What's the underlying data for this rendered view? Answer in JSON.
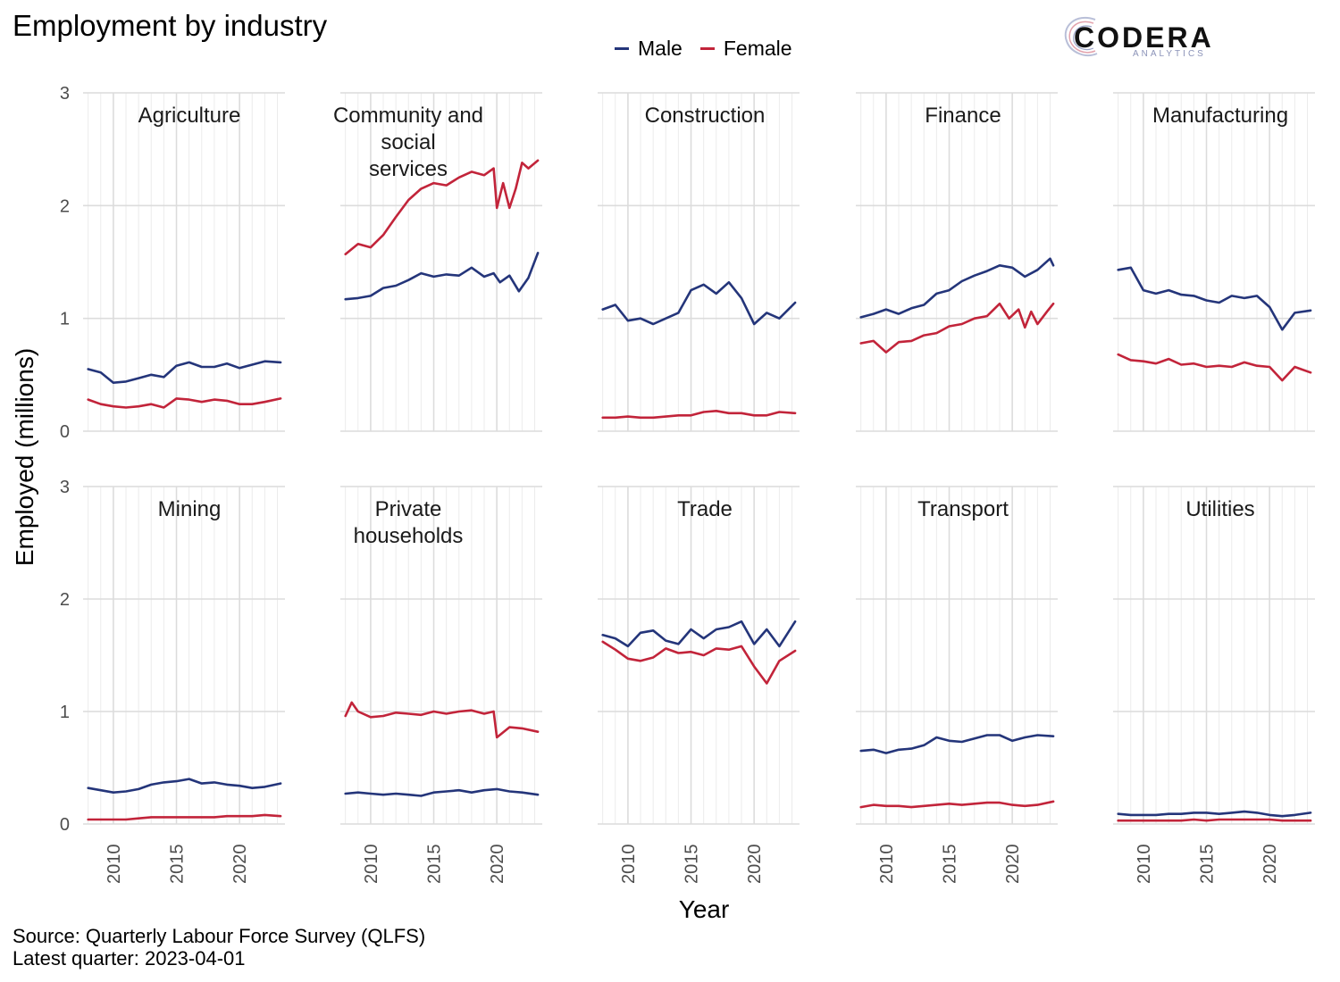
{
  "title": "Employment by industry",
  "logo": {
    "name": "CODERA",
    "subtitle": "ANALYTICS"
  },
  "source_line": "Source: Quarterly Labour Force Survey (QLFS)",
  "latest_line": "Latest quarter: 2023-04-01",
  "chart_data": {
    "type": "line",
    "title": "Employment by industry",
    "xlabel": "Year",
    "ylabel": "Employed (millions)",
    "xlim": [
      2008,
      2023.25
    ],
    "ylim": [
      0,
      3
    ],
    "x_ticks": [
      2010,
      2015,
      2020
    ],
    "y_ticks": [
      0,
      1,
      2,
      3
    ],
    "grid": true,
    "legend": "top-center",
    "colors": {
      "Male": "#24357a",
      "Female": "#c2243a"
    },
    "facets": [
      {
        "label": "Agriculture",
        "series": [
          {
            "name": "Male",
            "x": [
              2008,
              2009,
              2010,
              2011,
              2012,
              2013,
              2014,
              2015,
              2016,
              2017,
              2018,
              2019,
              2020,
              2021,
              2022,
              2023.25
            ],
            "values": [
              0.55,
              0.52,
              0.43,
              0.44,
              0.47,
              0.5,
              0.48,
              0.58,
              0.61,
              0.57,
              0.57,
              0.6,
              0.56,
              0.59,
              0.62,
              0.61
            ]
          },
          {
            "name": "Female",
            "x": [
              2008,
              2009,
              2010,
              2011,
              2012,
              2013,
              2014,
              2015,
              2016,
              2017,
              2018,
              2019,
              2020,
              2021,
              2022,
              2023.25
            ],
            "values": [
              0.28,
              0.24,
              0.22,
              0.21,
              0.22,
              0.24,
              0.21,
              0.29,
              0.28,
              0.26,
              0.28,
              0.27,
              0.24,
              0.24,
              0.26,
              0.29
            ]
          }
        ]
      },
      {
        "label": "Community and social services",
        "series": [
          {
            "name": "Male",
            "x": [
              2008,
              2009,
              2010,
              2011,
              2012,
              2013,
              2014,
              2015,
              2016,
              2017,
              2018,
              2019,
              2019.75,
              2020.25,
              2021,
              2021.75,
              2022.5,
              2023.25
            ],
            "values": [
              1.17,
              1.18,
              1.2,
              1.27,
              1.29,
              1.34,
              1.4,
              1.37,
              1.39,
              1.38,
              1.45,
              1.37,
              1.4,
              1.32,
              1.38,
              1.24,
              1.36,
              1.58
            ]
          },
          {
            "name": "Female",
            "x": [
              2008,
              2009,
              2010,
              2011,
              2012,
              2013,
              2014,
              2015,
              2016,
              2017,
              2018,
              2019,
              2019.75,
              2020,
              2020.5,
              2021,
              2021.5,
              2022,
              2022.5,
              2023.25
            ],
            "values": [
              1.57,
              1.66,
              1.63,
              1.74,
              1.9,
              2.05,
              2.15,
              2.2,
              2.18,
              2.25,
              2.3,
              2.27,
              2.33,
              1.98,
              2.2,
              1.98,
              2.15,
              2.38,
              2.33,
              2.4
            ]
          }
        ]
      },
      {
        "label": "Construction",
        "series": [
          {
            "name": "Male",
            "x": [
              2008,
              2009,
              2010,
              2011,
              2012,
              2013,
              2014,
              2015,
              2016,
              2017,
              2018,
              2019,
              2020,
              2021,
              2022,
              2023.25
            ],
            "values": [
              1.08,
              1.12,
              0.98,
              1.0,
              0.95,
              1.0,
              1.05,
              1.25,
              1.3,
              1.22,
              1.32,
              1.18,
              0.95,
              1.05,
              1.0,
              1.14
            ]
          },
          {
            "name": "Female",
            "x": [
              2008,
              2009,
              2010,
              2011,
              2012,
              2013,
              2014,
              2015,
              2016,
              2017,
              2018,
              2019,
              2020,
              2021,
              2022,
              2023.25
            ],
            "values": [
              0.12,
              0.12,
              0.13,
              0.12,
              0.12,
              0.13,
              0.14,
              0.14,
              0.17,
              0.18,
              0.16,
              0.16,
              0.14,
              0.14,
              0.17,
              0.16
            ]
          }
        ]
      },
      {
        "label": "Finance",
        "series": [
          {
            "name": "Male",
            "x": [
              2008,
              2009,
              2010,
              2011,
              2012,
              2013,
              2014,
              2015,
              2016,
              2017,
              2018,
              2019,
              2020,
              2021,
              2022,
              2023,
              2023.25
            ],
            "values": [
              1.01,
              1.04,
              1.08,
              1.04,
              1.09,
              1.12,
              1.22,
              1.25,
              1.33,
              1.38,
              1.42,
              1.47,
              1.45,
              1.37,
              1.43,
              1.53,
              1.47
            ]
          },
          {
            "name": "Female",
            "x": [
              2008,
              2009,
              2010,
              2011,
              2012,
              2013,
              2014,
              2015,
              2016,
              2017,
              2018,
              2019,
              2019.75,
              2020.5,
              2021,
              2021.5,
              2022,
              2022.75,
              2023.25
            ],
            "values": [
              0.78,
              0.8,
              0.7,
              0.79,
              0.8,
              0.85,
              0.87,
              0.93,
              0.95,
              1.0,
              1.02,
              1.13,
              1.0,
              1.08,
              0.92,
              1.06,
              0.95,
              1.06,
              1.13
            ]
          }
        ]
      },
      {
        "label": "Manufacturing",
        "series": [
          {
            "name": "Male",
            "x": [
              2008,
              2009,
              2010,
              2011,
              2012,
              2013,
              2014,
              2015,
              2016,
              2017,
              2018,
              2019,
              2020,
              2021,
              2022,
              2023.25
            ],
            "values": [
              1.43,
              1.45,
              1.25,
              1.22,
              1.25,
              1.21,
              1.2,
              1.16,
              1.14,
              1.2,
              1.18,
              1.2,
              1.1,
              0.9,
              1.05,
              1.07
            ]
          },
          {
            "name": "Female",
            "x": [
              2008,
              2009,
              2010,
              2011,
              2012,
              2013,
              2014,
              2015,
              2016,
              2017,
              2018,
              2019,
              2020,
              2021,
              2022,
              2023.25
            ],
            "values": [
              0.68,
              0.63,
              0.62,
              0.6,
              0.64,
              0.59,
              0.6,
              0.57,
              0.58,
              0.57,
              0.61,
              0.58,
              0.57,
              0.45,
              0.57,
              0.52
            ]
          }
        ]
      },
      {
        "label": "Mining",
        "series": [
          {
            "name": "Male",
            "x": [
              2008,
              2009,
              2010,
              2011,
              2012,
              2013,
              2014,
              2015,
              2016,
              2017,
              2018,
              2019,
              2020,
              2021,
              2022,
              2023.25
            ],
            "values": [
              0.32,
              0.3,
              0.28,
              0.29,
              0.31,
              0.35,
              0.37,
              0.38,
              0.4,
              0.36,
              0.37,
              0.35,
              0.34,
              0.32,
              0.33,
              0.36
            ]
          },
          {
            "name": "Female",
            "x": [
              2008,
              2009,
              2010,
              2011,
              2012,
              2013,
              2014,
              2015,
              2016,
              2017,
              2018,
              2019,
              2020,
              2021,
              2022,
              2023.25
            ],
            "values": [
              0.04,
              0.04,
              0.04,
              0.04,
              0.05,
              0.06,
              0.06,
              0.06,
              0.06,
              0.06,
              0.06,
              0.07,
              0.07,
              0.07,
              0.08,
              0.07
            ]
          }
        ]
      },
      {
        "label": "Private households",
        "series": [
          {
            "name": "Male",
            "x": [
              2008,
              2009,
              2010,
              2011,
              2012,
              2013,
              2014,
              2015,
              2016,
              2017,
              2018,
              2019,
              2020,
              2021,
              2022,
              2023.25
            ],
            "values": [
              0.27,
              0.28,
              0.27,
              0.26,
              0.27,
              0.26,
              0.25,
              0.28,
              0.29,
              0.3,
              0.28,
              0.3,
              0.31,
              0.29,
              0.28,
              0.26
            ]
          },
          {
            "name": "Female",
            "x": [
              2008,
              2008.5,
              2009,
              2010,
              2011,
              2012,
              2013,
              2014,
              2015,
              2016,
              2017,
              2018,
              2019,
              2019.75,
              2020,
              2021,
              2022,
              2023.25
            ],
            "values": [
              0.96,
              1.08,
              1.0,
              0.95,
              0.96,
              0.99,
              0.98,
              0.97,
              1.0,
              0.98,
              1.0,
              1.01,
              0.98,
              1.0,
              0.77,
              0.86,
              0.85,
              0.82
            ]
          }
        ]
      },
      {
        "label": "Trade",
        "series": [
          {
            "name": "Male",
            "x": [
              2008,
              2009,
              2010,
              2011,
              2012,
              2013,
              2014,
              2015,
              2016,
              2017,
              2018,
              2019,
              2020,
              2021,
              2022,
              2023.25
            ],
            "values": [
              1.68,
              1.65,
              1.58,
              1.7,
              1.72,
              1.63,
              1.6,
              1.73,
              1.65,
              1.73,
              1.75,
              1.8,
              1.6,
              1.73,
              1.58,
              1.8
            ]
          },
          {
            "name": "Female",
            "x": [
              2008,
              2009,
              2010,
              2011,
              2012,
              2013,
              2014,
              2015,
              2016,
              2017,
              2018,
              2019,
              2020,
              2021,
              2022,
              2023.25
            ],
            "values": [
              1.62,
              1.55,
              1.47,
              1.45,
              1.48,
              1.56,
              1.52,
              1.53,
              1.5,
              1.56,
              1.55,
              1.58,
              1.4,
              1.25,
              1.45,
              1.54
            ]
          }
        ]
      },
      {
        "label": "Transport",
        "series": [
          {
            "name": "Male",
            "x": [
              2008,
              2009,
              2010,
              2011,
              2012,
              2013,
              2014,
              2015,
              2016,
              2017,
              2018,
              2019,
              2020,
              2021,
              2022,
              2023.25
            ],
            "values": [
              0.65,
              0.66,
              0.63,
              0.66,
              0.67,
              0.7,
              0.77,
              0.74,
              0.73,
              0.76,
              0.79,
              0.79,
              0.74,
              0.77,
              0.79,
              0.78
            ]
          },
          {
            "name": "Female",
            "x": [
              2008,
              2009,
              2010,
              2011,
              2012,
              2013,
              2014,
              2015,
              2016,
              2017,
              2018,
              2019,
              2020,
              2021,
              2022,
              2023.25
            ],
            "values": [
              0.15,
              0.17,
              0.16,
              0.16,
              0.15,
              0.16,
              0.17,
              0.18,
              0.17,
              0.18,
              0.19,
              0.19,
              0.17,
              0.16,
              0.17,
              0.2
            ]
          }
        ]
      },
      {
        "label": "Utilities",
        "series": [
          {
            "name": "Male",
            "x": [
              2008,
              2009,
              2010,
              2011,
              2012,
              2013,
              2014,
              2015,
              2016,
              2017,
              2018,
              2019,
              2020,
              2021,
              2022,
              2023.25
            ],
            "values": [
              0.09,
              0.08,
              0.08,
              0.08,
              0.09,
              0.09,
              0.1,
              0.1,
              0.09,
              0.1,
              0.11,
              0.1,
              0.08,
              0.07,
              0.08,
              0.1
            ]
          },
          {
            "name": "Female",
            "x": [
              2008,
              2009,
              2010,
              2011,
              2012,
              2013,
              2014,
              2015,
              2016,
              2017,
              2018,
              2019,
              2020,
              2021,
              2022,
              2023.25
            ],
            "values": [
              0.03,
              0.03,
              0.03,
              0.03,
              0.03,
              0.03,
              0.04,
              0.03,
              0.04,
              0.04,
              0.04,
              0.04,
              0.04,
              0.03,
              0.03,
              0.03
            ]
          }
        ]
      }
    ]
  }
}
